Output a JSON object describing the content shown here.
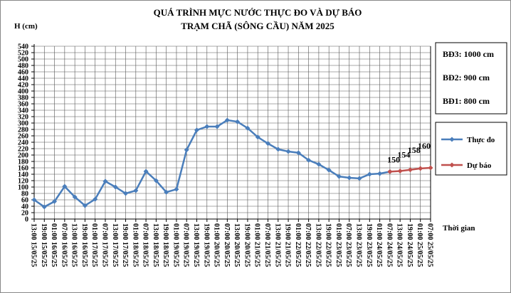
{
  "chart_data": {
    "type": "line",
    "title": "QUÁ TRÌNH MỰC NƯỚC THỰC ĐO VÀ DỰ BÁO",
    "subtitle": "TRẠM CHÃ (SÔNG CẦU) NĂM 2025",
    "y_label": "H (cm)",
    "x_label": "Thời gian",
    "categories": [
      "13:00 15/05/25",
      "19:00 15/05/25",
      "01:00 16/05/25",
      "07:00 16/05/25",
      "13:00 16/05/25",
      "19:00 16/05/25",
      "01:00 17/05/25",
      "07:00 17/05/25",
      "13:00 17/05/25",
      "19:00 17/05/25",
      "01:00 18/05/25",
      "07:00 18/05/25",
      "13:00 18/05/25",
      "19:00 18/05/25",
      "01:00 19/05/25",
      "07:00 19/05/25",
      "13:00 19/05/25",
      "19:00 19/05/25",
      "01:00 20/05/25",
      "07:00 20/05/25",
      "13:00 20/05/25",
      "19:00 20/05/25",
      "01:00 21/05/25",
      "07:00 21/05/25",
      "13:00 21/05/25",
      "19:00 21/05/25",
      "01:00 22/05/25",
      "07:00 22/05/25",
      "13:00 22/05/25",
      "19:00 22/05/25",
      "01:00 23/05/25",
      "07:00 23/05/25",
      "13:00 23/05/25",
      "19:00 23/05/25",
      "01:00 24/05/25",
      "07:00 24/05/25",
      "13:00 24/05/25",
      "19:00 24/05/25",
      "01:00 25/05/25",
      "07:00 25/05/25"
    ],
    "series": [
      {
        "name": "Thực đo",
        "color": "#4a7ebb",
        "values": [
          60,
          38,
          55,
          102,
          69,
          42,
          62,
          118,
          100,
          80,
          89,
          149,
          120,
          84,
          93,
          216,
          278,
          289,
          289,
          309,
          304,
          284,
          256,
          236,
          218,
          211,
          207,
          184,
          171,
          153,
          133,
          129,
          127,
          140,
          142,
          148,
          null,
          null,
          null,
          null
        ]
      },
      {
        "name": "Dự báo",
        "color": "#c0504d",
        "values": [
          null,
          null,
          null,
          null,
          null,
          null,
          null,
          null,
          null,
          null,
          null,
          null,
          null,
          null,
          null,
          null,
          null,
          null,
          null,
          null,
          null,
          null,
          null,
          null,
          null,
          null,
          null,
          null,
          null,
          null,
          null,
          null,
          null,
          null,
          null,
          148,
          150,
          154,
          158,
          160
        ]
      }
    ],
    "ylim": [
      0,
      540
    ],
    "yticks": [
      0,
      20,
      40,
      60,
      80,
      100,
      120,
      140,
      160,
      180,
      200,
      220,
      240,
      260,
      280,
      300,
      320,
      340,
      360,
      380,
      400,
      420,
      440,
      460,
      480,
      500,
      520,
      540
    ],
    "grid": true,
    "alarm_levels": [
      "BĐ3: 1000 cm",
      "BĐ2: 900 cm",
      "BĐ1: 800 cm"
    ]
  }
}
